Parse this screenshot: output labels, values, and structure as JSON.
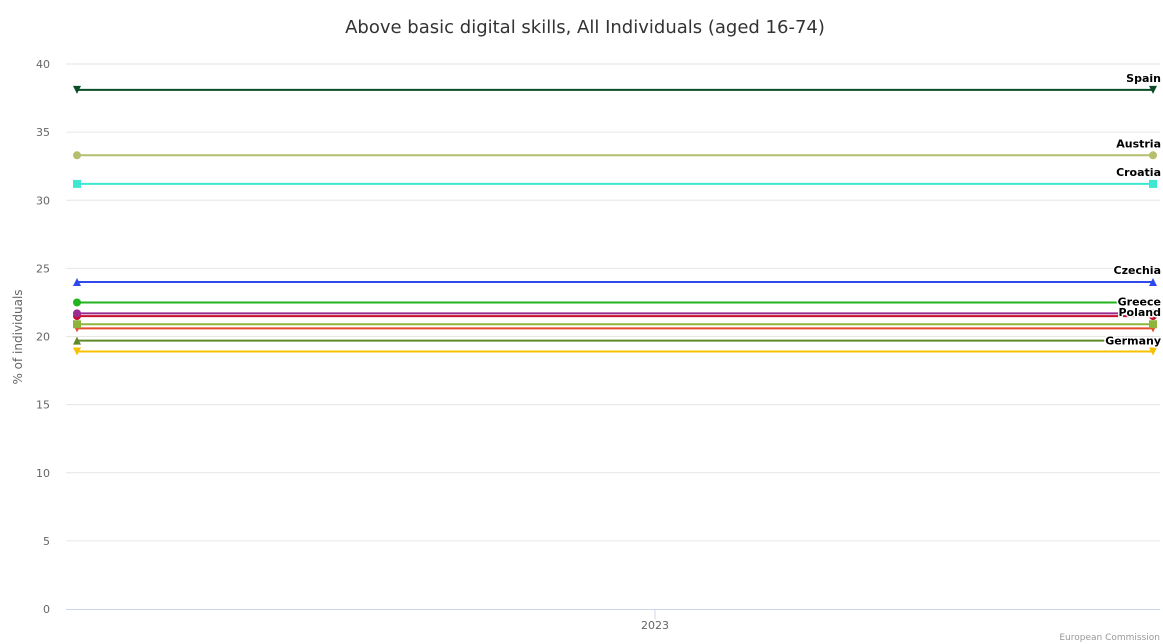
{
  "chart_data": {
    "type": "line",
    "title": "Above basic digital skills, All Individuals (aged 16-74)",
    "xlabel": "",
    "ylabel": "% of individuals",
    "categories": [
      "2023"
    ],
    "ylim": [
      0,
      40
    ],
    "yticks": [
      0,
      5,
      10,
      15,
      20,
      25,
      30,
      35,
      40
    ],
    "grid": true,
    "series": [
      {
        "name": "Spain",
        "values": [
          38.1
        ],
        "color": "#0b4d26",
        "marker": "triangle-down",
        "label_shown": true
      },
      {
        "name": "Austria",
        "values": [
          33.3
        ],
        "color": "#b5bf6e",
        "marker": "circle",
        "label_shown": true
      },
      {
        "name": "Croatia",
        "values": [
          31.2
        ],
        "color": "#3ee8d0",
        "marker": "square",
        "label_shown": true
      },
      {
        "name": "Czechia",
        "values": [
          24.0
        ],
        "color": "#2e49ee",
        "marker": "triangle-up",
        "label_shown": true
      },
      {
        "name": "Greece",
        "values": [
          22.5
        ],
        "color": "#22b51f",
        "marker": "circle",
        "label_shown": true
      },
      {
        "name": "",
        "values": [
          21.7
        ],
        "color": "#9b2c8f",
        "marker": "circle",
        "label_shown": false
      },
      {
        "name": "Poland",
        "values": [
          21.5
        ],
        "color": "#c8102e",
        "marker": "circle",
        "label_shown": true
      },
      {
        "name": "",
        "values": [
          20.9
        ],
        "color": "#8db53c",
        "marker": "square",
        "label_shown": false
      },
      {
        "name": "",
        "values": [
          20.6
        ],
        "color": "#e84a2c",
        "marker": "triangle-down",
        "label_shown": false
      },
      {
        "name": "Germany",
        "values": [
          19.7
        ],
        "color": "#5f8a2a",
        "marker": "triangle-up",
        "label_shown": true
      },
      {
        "name": "",
        "values": [
          18.9
        ],
        "color": "#f6c200",
        "marker": "triangle-down",
        "label_shown": false
      }
    ]
  },
  "credit": "European Commission"
}
